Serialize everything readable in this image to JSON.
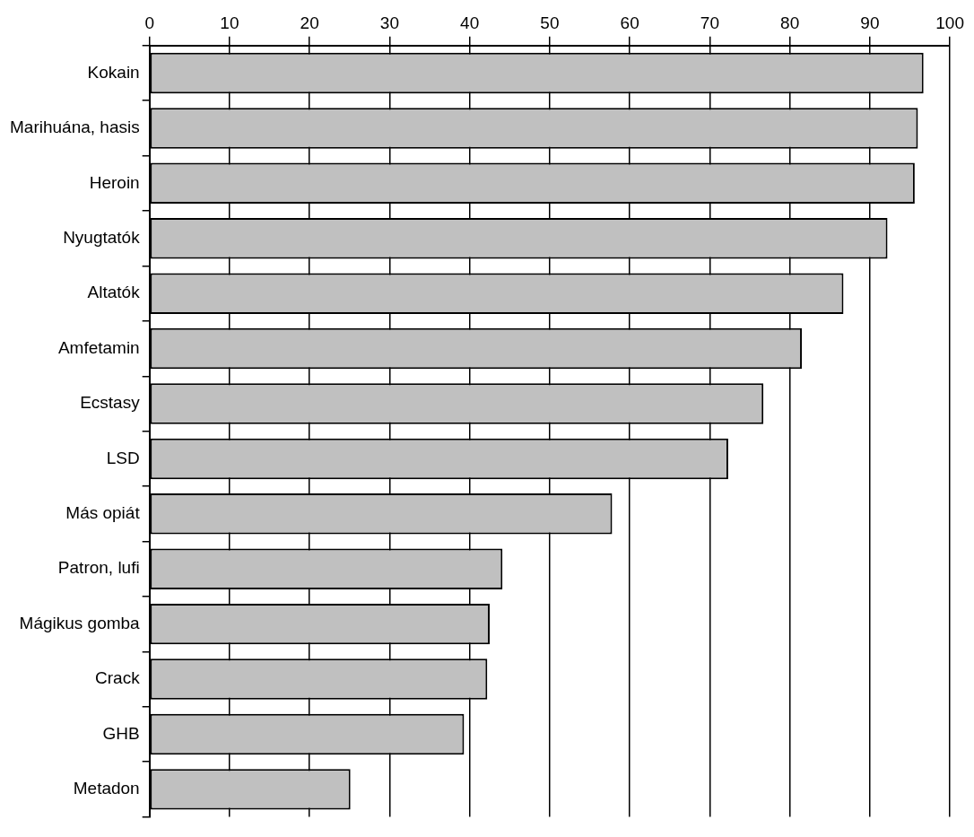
{
  "chart_data": {
    "type": "bar",
    "orientation": "horizontal",
    "categories": [
      "Kokain",
      "Marihuána, hasis",
      "Heroin",
      "Nyugtatók",
      "Altatók",
      "Amfetamin",
      "Ecstasy",
      "LSD",
      "Más opiát",
      "Patron, lufi",
      "Mágikus gomba",
      "Crack",
      "GHB",
      "Metadon"
    ],
    "values": [
      96.7,
      96.0,
      95.6,
      92.2,
      86.7,
      81.5,
      76.7,
      72.3,
      57.8,
      44.1,
      42.5,
      42.2,
      39.3,
      25.1
    ],
    "color": "#c0c0c0",
    "xlim": [
      0,
      100
    ],
    "xticks": [
      0,
      10,
      20,
      30,
      40,
      50,
      60,
      70,
      80,
      90,
      100
    ],
    "grid": "x"
  }
}
